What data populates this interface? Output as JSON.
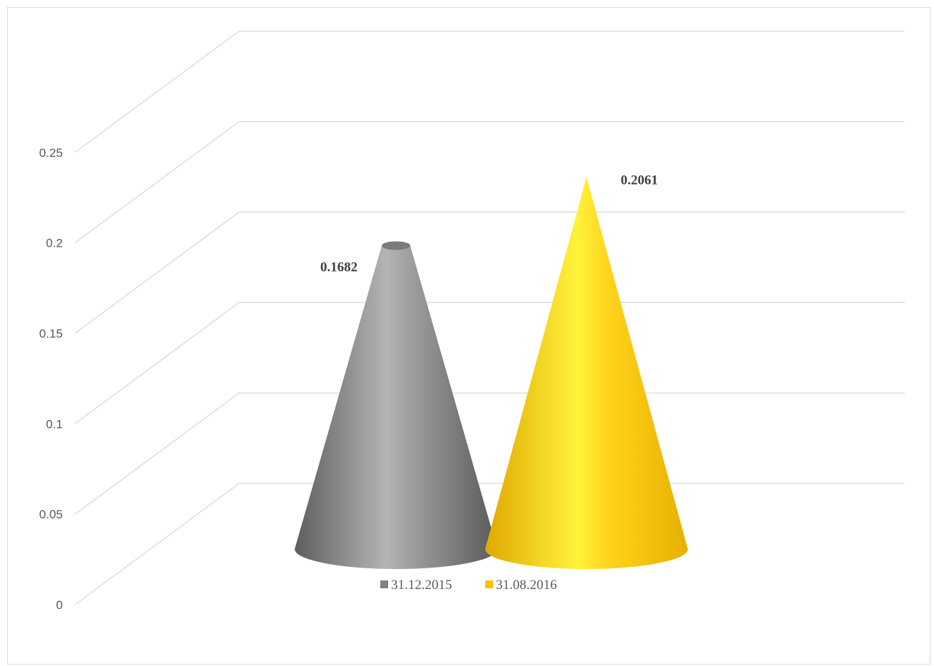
{
  "chart_data": {
    "type": "bar",
    "subtype": "3d-cone",
    "categories": [
      ""
    ],
    "series": [
      {
        "name": "31.12.2015",
        "values": [
          0.1682
        ],
        "color": "#808080"
      },
      {
        "name": "31.08.2016",
        "values": [
          0.2061
        ],
        "color": "#ffc000"
      }
    ],
    "data_labels": [
      "0.1682",
      "0.2061"
    ],
    "ylim": [
      0,
      0.25
    ],
    "yticks": [
      "0",
      "0.05",
      "0.1",
      "0.15",
      "0.2",
      "0.25"
    ],
    "grid": true,
    "legend": "bottom"
  }
}
